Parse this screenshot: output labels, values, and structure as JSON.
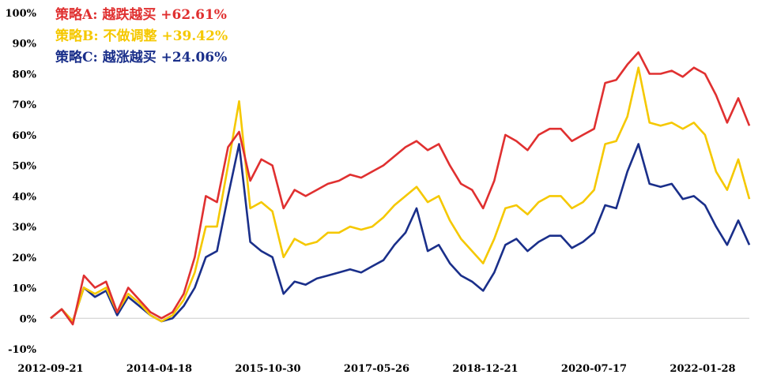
{
  "chart_data": {
    "type": "line",
    "title": "",
    "xlabel": "",
    "ylabel": "",
    "ylim": [
      -0.1,
      1.0
    ],
    "y_ticks": [
      {
        "value": -0.1,
        "label": "-10%"
      },
      {
        "value": 0.0,
        "label": "0%"
      },
      {
        "value": 0.1,
        "label": "10%"
      },
      {
        "value": 0.2,
        "label": "20%"
      },
      {
        "value": 0.3,
        "label": "30%"
      },
      {
        "value": 0.4,
        "label": "40%"
      },
      {
        "value": 0.5,
        "label": "50%"
      },
      {
        "value": 0.6,
        "label": "60%"
      },
      {
        "value": 0.7,
        "label": "70%"
      },
      {
        "value": 0.8,
        "label": "80%"
      },
      {
        "value": 0.9,
        "label": "90%"
      },
      {
        "value": 1.0,
        "label": "100%"
      }
    ],
    "x_ticks": [
      "2012-09-21",
      "2014-04-18",
      "2015-10-30",
      "2017-05-26",
      "2018-12-21",
      "2020-07-17",
      "2022-01-28"
    ],
    "legend_position": "top-left",
    "x": [
      "2012-09",
      "2012-11",
      "2013-01",
      "2013-03",
      "2013-05",
      "2013-07",
      "2013-09",
      "2013-11",
      "2014-01",
      "2014-03",
      "2014-05",
      "2014-07",
      "2014-09",
      "2014-11",
      "2015-01",
      "2015-03",
      "2015-05",
      "2015-06",
      "2015-07",
      "2015-08",
      "2015-09",
      "2015-11",
      "2016-01",
      "2016-03",
      "2016-05",
      "2016-07",
      "2016-09",
      "2016-11",
      "2017-01",
      "2017-03",
      "2017-05",
      "2017-07",
      "2017-09",
      "2017-11",
      "2018-01",
      "2018-03",
      "2018-05",
      "2018-07",
      "2018-09",
      "2018-11",
      "2019-01",
      "2019-03",
      "2019-05",
      "2019-07",
      "2019-09",
      "2019-11",
      "2020-01",
      "2020-03",
      "2020-05",
      "2020-07",
      "2020-09",
      "2020-11",
      "2021-01",
      "2021-03",
      "2021-05",
      "2021-07",
      "2021-09",
      "2021-11",
      "2022-01",
      "2022-03",
      "2022-05",
      "2022-07",
      "2022-09",
      "2022-10"
    ],
    "series": [
      {
        "name": "策略A: 越跌越买",
        "legend_label": "策略A: 越跌越买 +62.61%",
        "final_return": "+62.61%",
        "color": "#e03030",
        "values": [
          0.0,
          0.03,
          -0.02,
          0.14,
          0.1,
          0.12,
          0.02,
          0.1,
          0.06,
          0.02,
          0.0,
          0.02,
          0.08,
          0.2,
          0.4,
          0.38,
          0.56,
          0.61,
          0.45,
          0.52,
          0.5,
          0.36,
          0.42,
          0.4,
          0.42,
          0.44,
          0.45,
          0.47,
          0.46,
          0.48,
          0.5,
          0.53,
          0.56,
          0.58,
          0.55,
          0.57,
          0.5,
          0.44,
          0.42,
          0.36,
          0.45,
          0.6,
          0.58,
          0.55,
          0.6,
          0.62,
          0.62,
          0.58,
          0.6,
          0.62,
          0.77,
          0.78,
          0.83,
          0.87,
          0.8,
          0.8,
          0.81,
          0.79,
          0.82,
          0.8,
          0.73,
          0.64,
          0.72,
          0.63
        ]
      },
      {
        "name": "策略B: 不做调整",
        "legend_label": "策略B: 不做调整 +39.42%",
        "final_return": "+39.42%",
        "color": "#f5c800",
        "values": [
          0.0,
          0.03,
          -0.01,
          0.1,
          0.08,
          0.1,
          0.02,
          0.08,
          0.05,
          0.01,
          -0.01,
          0.01,
          0.06,
          0.15,
          0.3,
          0.3,
          0.5,
          0.71,
          0.36,
          0.38,
          0.35,
          0.2,
          0.26,
          0.24,
          0.25,
          0.28,
          0.28,
          0.3,
          0.29,
          0.3,
          0.33,
          0.37,
          0.4,
          0.43,
          0.38,
          0.4,
          0.32,
          0.26,
          0.22,
          0.18,
          0.26,
          0.36,
          0.37,
          0.34,
          0.38,
          0.4,
          0.4,
          0.36,
          0.38,
          0.42,
          0.57,
          0.58,
          0.66,
          0.82,
          0.64,
          0.63,
          0.64,
          0.62,
          0.64,
          0.6,
          0.48,
          0.42,
          0.52,
          0.39
        ]
      },
      {
        "name": "策略C: 越涨越买",
        "legend_label": "策略C: 越涨越买 +24.06%",
        "final_return": "+24.06%",
        "color": "#1a2f8a",
        "values": [
          0.0,
          0.03,
          -0.01,
          0.1,
          0.07,
          0.09,
          0.01,
          0.07,
          0.04,
          0.01,
          -0.01,
          0.0,
          0.04,
          0.1,
          0.2,
          0.22,
          0.4,
          0.57,
          0.25,
          0.22,
          0.2,
          0.08,
          0.12,
          0.11,
          0.13,
          0.14,
          0.15,
          0.16,
          0.15,
          0.17,
          0.19,
          0.24,
          0.28,
          0.36,
          0.22,
          0.24,
          0.18,
          0.14,
          0.12,
          0.09,
          0.15,
          0.24,
          0.26,
          0.22,
          0.25,
          0.27,
          0.27,
          0.23,
          0.25,
          0.28,
          0.37,
          0.36,
          0.48,
          0.57,
          0.44,
          0.43,
          0.44,
          0.39,
          0.4,
          0.37,
          0.3,
          0.24,
          0.32,
          0.24
        ]
      }
    ]
  }
}
